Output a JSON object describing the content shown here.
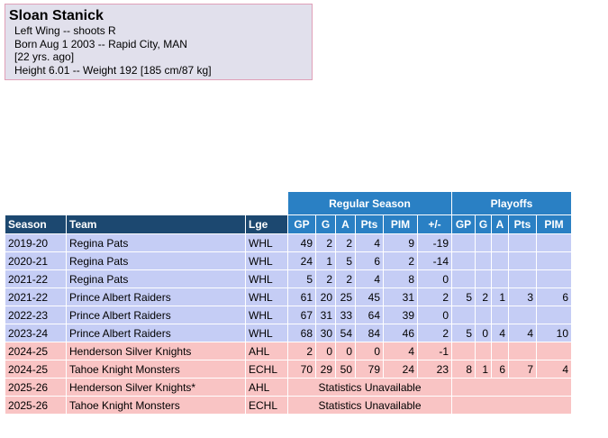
{
  "player": {
    "name": "Sloan Stanick",
    "position_line": "Left Wing -- shoots R",
    "born_line": "Born Aug 1 2003 -- Rapid City, MAN",
    "age_line": "[22 yrs. ago]",
    "size_line": "Height 6.01 -- Weight 192 [185 cm/87 kg]"
  },
  "table": {
    "group_headers": {
      "regular": "Regular Season",
      "playoffs": "Playoffs"
    },
    "columns": [
      "Season",
      "Team",
      "Lge",
      "GP",
      "G",
      "A",
      "Pts",
      "PIM",
      "+/-",
      "GP",
      "G",
      "A",
      "Pts",
      "PIM"
    ],
    "rows": [
      {
        "season": "2019-20",
        "team": "Regina Pats",
        "lge": "WHL",
        "rs": [
          "49",
          "2",
          "2",
          "4",
          "9",
          "-19"
        ],
        "po": [
          "",
          "",
          "",
          "",
          ""
        ],
        "color": "blue"
      },
      {
        "season": "2020-21",
        "team": "Regina Pats",
        "lge": "WHL",
        "rs": [
          "24",
          "1",
          "5",
          "6",
          "2",
          "-14"
        ],
        "po": [
          "",
          "",
          "",
          "",
          ""
        ],
        "color": "blue"
      },
      {
        "season": "2021-22",
        "team": "Regina Pats",
        "lge": "WHL",
        "rs": [
          "5",
          "2",
          "2",
          "4",
          "8",
          "0"
        ],
        "po": [
          "",
          "",
          "",
          "",
          ""
        ],
        "color": "blue"
      },
      {
        "season": "2021-22",
        "team": "Prince Albert Raiders",
        "lge": "WHL",
        "rs": [
          "61",
          "20",
          "25",
          "45",
          "31",
          "2"
        ],
        "po": [
          "5",
          "2",
          "1",
          "3",
          "6"
        ],
        "color": "blue"
      },
      {
        "season": "2022-23",
        "team": "Prince Albert Raiders",
        "lge": "WHL",
        "rs": [
          "67",
          "31",
          "33",
          "64",
          "39",
          "0"
        ],
        "po": [
          "",
          "",
          "",
          "",
          ""
        ],
        "color": "blue"
      },
      {
        "season": "2023-24",
        "team": "Prince Albert Raiders",
        "lge": "WHL",
        "rs": [
          "68",
          "30",
          "54",
          "84",
          "46",
          "2"
        ],
        "po": [
          "5",
          "0",
          "4",
          "4",
          "10"
        ],
        "color": "blue"
      },
      {
        "season": "2024-25",
        "team": "Henderson Silver Knights",
        "lge": "AHL",
        "rs": [
          "2",
          "0",
          "0",
          "0",
          "4",
          "-1"
        ],
        "po": [
          "",
          "",
          "",
          "",
          ""
        ],
        "color": "pink"
      },
      {
        "season": "2024-25",
        "team": "Tahoe Knight Monsters",
        "lge": "ECHL",
        "rs": [
          "70",
          "29",
          "50",
          "79",
          "24",
          "23"
        ],
        "po": [
          "8",
          "1",
          "6",
          "7",
          "4"
        ],
        "color": "pink"
      },
      {
        "season": "2025-26",
        "team": "Henderson Silver Knights*",
        "lge": "AHL",
        "unavailable": "Statistics Unavailable",
        "color": "pink"
      },
      {
        "season": "2025-26",
        "team": "Tahoe Knight Monsters",
        "lge": "ECHL",
        "unavailable": "Statistics Unavailable",
        "color": "pink"
      }
    ]
  },
  "colors": {
    "header_dark": "#1c4870",
    "header_blue": "#2a80c4",
    "row_blue": "#c5cdf5",
    "row_pink": "#f9c4c4",
    "bio_bg": "#e1e0ec"
  }
}
